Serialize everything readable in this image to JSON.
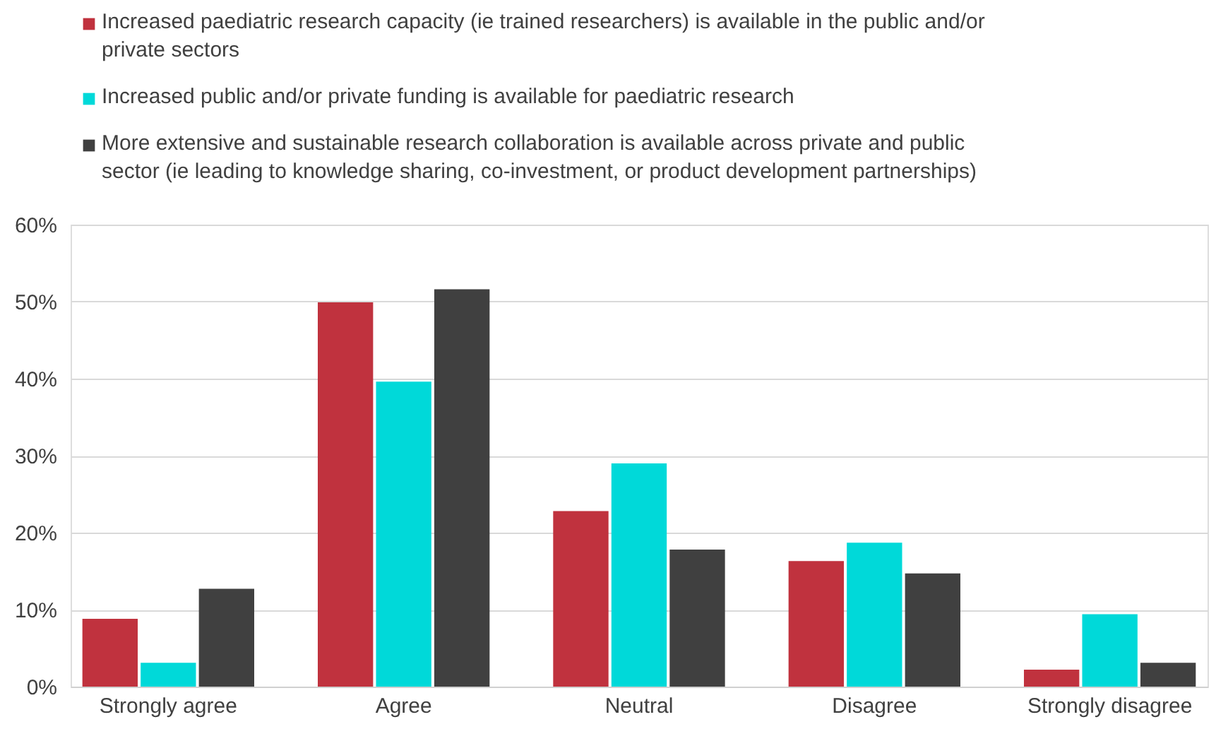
{
  "chart_data": {
    "type": "bar",
    "categories": [
      "Strongly agree",
      "Agree",
      "Neutral",
      "Disagree",
      "Strongly disagree"
    ],
    "series": [
      {
        "name": "Increased paediatric research capacity (ie trained researchers) is available in the public and/or private sectors",
        "color": "#c0323e",
        "values": [
          8.8,
          49.9,
          22.8,
          16.3,
          2.2
        ]
      },
      {
        "name": "Increased public and/or private funding is available for paediatric research",
        "color": "#00d9d9",
        "values": [
          3.1,
          39.6,
          29.0,
          18.7,
          9.4
        ]
      },
      {
        "name": "More extensive and sustainable research collaboration is available across private and public sector (ie leading to knowledge sharing, co-investment, or product development partnerships)",
        "color": "#404040",
        "values": [
          12.7,
          51.6,
          17.8,
          14.7,
          3.1
        ]
      }
    ],
    "ylim": [
      0,
      60
    ],
    "yticks": [
      {
        "value": 0,
        "label": "0%"
      },
      {
        "value": 10,
        "label": "10%"
      },
      {
        "value": 20,
        "label": "20%"
      },
      {
        "value": 30,
        "label": "30%"
      },
      {
        "value": 40,
        "label": "40%"
      },
      {
        "value": 50,
        "label": "50%"
      },
      {
        "value": 60,
        "label": "60%"
      }
    ],
    "grid": "y",
    "legend": "top left"
  }
}
